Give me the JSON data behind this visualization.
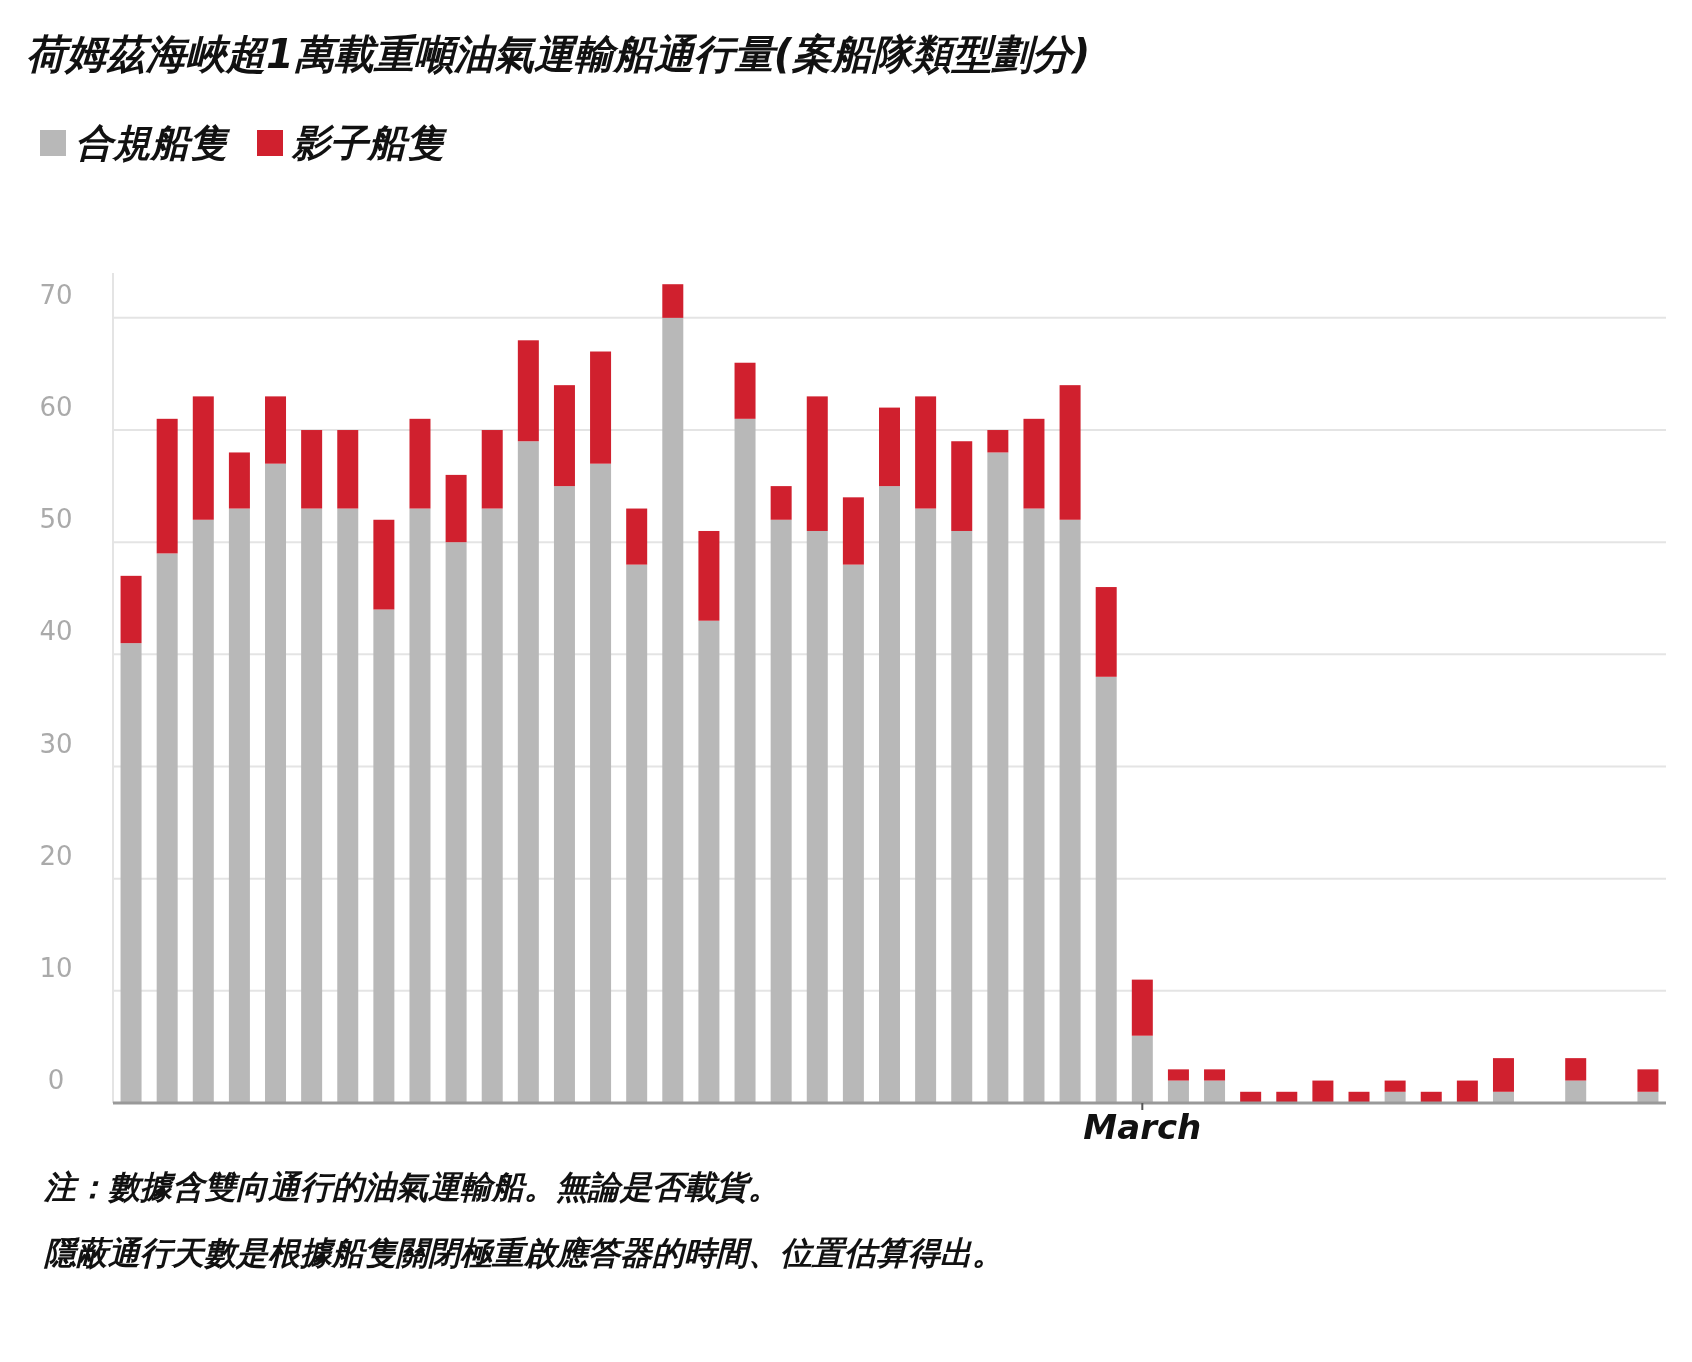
{
  "chart_data": {
    "type": "bar",
    "stacked": true,
    "title": "荷姆茲海峽超1萬載重噸油氣運輸船通行量(案船隊類型劃分)",
    "categories": [
      null,
      null,
      null,
      null,
      null,
      null,
      null,
      null,
      null,
      null,
      null,
      null,
      null,
      null,
      null,
      null,
      null,
      null,
      null,
      null,
      null,
      null,
      null,
      null,
      null,
      null,
      null,
      null,
      "March",
      null,
      null,
      null,
      null,
      null,
      null,
      null,
      null,
      null,
      null,
      null,
      null,
      null,
      null
    ],
    "series": [
      {
        "name": "合規船隻",
        "color": "#b8b8b8",
        "values": [
          41,
          49,
          52,
          53,
          57,
          53,
          53,
          44,
          53,
          50,
          53,
          59,
          55,
          57,
          48,
          70,
          43,
          61,
          52,
          51,
          48,
          55,
          53,
          51,
          58,
          53,
          52,
          38,
          6,
          2,
          2,
          0,
          0,
          0,
          0,
          1,
          0,
          0,
          1,
          0,
          2,
          0,
          1
        ]
      },
      {
        "name": "影子船隻",
        "color": "#d0202e",
        "values": [
          6,
          12,
          11,
          5,
          6,
          7,
          7,
          8,
          8,
          6,
          7,
          9,
          9,
          10,
          5,
          3,
          8,
          5,
          3,
          12,
          6,
          7,
          10,
          8,
          2,
          8,
          12,
          8,
          5,
          1,
          1,
          1,
          1,
          2,
          1,
          1,
          1,
          2,
          3,
          0,
          2,
          0,
          2
        ]
      }
    ],
    "ylim": [
      0,
      74
    ],
    "yticks": [
      0,
      10,
      20,
      30,
      40,
      50,
      60,
      70
    ],
    "grid": "y",
    "legend": "top left",
    "annotations": [
      "注：數據含雙向通行的油氣運輸船。無論是否載貨。",
      "隱蔽通行天數是根據船隻關閉極重啟應答器的時間、位置估算得出。"
    ]
  }
}
